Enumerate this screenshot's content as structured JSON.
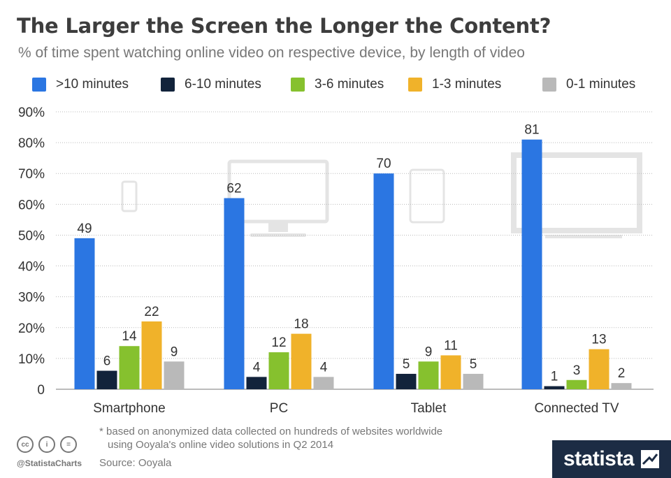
{
  "header": {
    "title": "The Larger the Screen the Longer the Content?",
    "subtitle": "% of time spent watching online video on respective device, by length of video"
  },
  "colors": {
    "series": [
      "#2b76e2",
      "#12233b",
      "#86c12e",
      "#f0b22a",
      "#b9b9b9"
    ],
    "gridline": "#bbbbbb",
    "device_icon": "#e4e4e4"
  },
  "chart_data": {
    "type": "bar",
    "title": "The Larger the Screen the Longer the Content?",
    "subtitle": "% of time spent watching online video on respective device, by length of video",
    "categories": [
      "Smartphone",
      "PC",
      "Tablet",
      "Connected TV"
    ],
    "series": [
      {
        "name": ">10 minutes",
        "values": [
          49,
          62,
          70,
          81
        ]
      },
      {
        "name": "6-10 minutes",
        "values": [
          6,
          4,
          5,
          1
        ]
      },
      {
        "name": "3-6 minutes",
        "values": [
          14,
          12,
          9,
          3
        ]
      },
      {
        "name": "1-3 minutes",
        "values": [
          22,
          18,
          11,
          13
        ]
      },
      {
        "name": "0-1 minutes",
        "values": [
          9,
          4,
          5,
          2
        ]
      }
    ],
    "ylim": [
      0,
      90
    ],
    "yticks": [
      "0",
      "10%",
      "20%",
      "30%",
      "40%",
      "50%",
      "60%",
      "70%",
      "80%",
      "90%"
    ],
    "xlabel": "",
    "ylabel": "",
    "grid": true,
    "legend_position": "top",
    "device_icons": [
      "smartphone-icon",
      "monitor-icon",
      "tablet-icon",
      "tv-icon"
    ]
  },
  "footer": {
    "note_line1": "* based on anonymized data collected on hundreds of websites worldwide",
    "note_line2": "using Ooyala's online video solutions in Q2 2014",
    "source": "Source: Ooyala",
    "handle": "@StatistaCharts",
    "cc_icons": [
      "cc",
      "i",
      "="
    ],
    "brand": "statista"
  }
}
